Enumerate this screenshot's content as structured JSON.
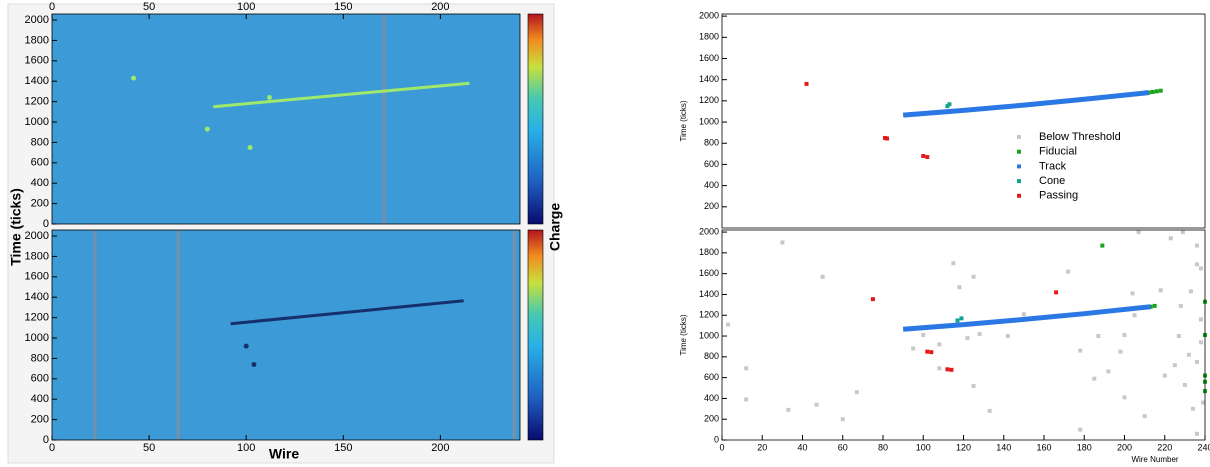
{
  "chart_data": [
    {
      "type": "heatmap",
      "ylabel": "Time (ticks)",
      "colorbar_label": "Charge",
      "xlim": [
        0,
        241
      ],
      "ylim": [
        0,
        2059
      ],
      "xticks": [
        0,
        50,
        100,
        150,
        200
      ],
      "yticks": [
        0,
        200,
        400,
        600,
        800,
        1000,
        1200,
        1400,
        1600,
        1800,
        2000
      ],
      "background": "#3c9bd6",
      "dead_wires": [
        171
      ],
      "dead_color": "#6a92b4",
      "track_color": "#9ee86a",
      "tracks": [
        {
          "x": [
            83,
            215
          ],
          "values": [
            1150,
            1380
          ]
        }
      ],
      "spots": {
        "x": [
          42,
          80,
          102,
          112
        ],
        "values": [
          1430,
          930,
          750,
          1240
        ]
      }
    },
    {
      "type": "heatmap",
      "xlabel": "Wire",
      "xlim": [
        0,
        241
      ],
      "ylim": [
        0,
        2059
      ],
      "xticks": [
        0,
        50,
        100,
        150,
        200
      ],
      "yticks": [
        0,
        200,
        400,
        600,
        800,
        1000,
        1200,
        1400,
        1600,
        1800,
        2000
      ],
      "background": "#3c9bd6",
      "dead_wires": [
        22,
        65,
        238
      ],
      "dead_color": "#6a92b4",
      "track_color": "#16306e",
      "tracks": [
        {
          "x": [
            92,
            212
          ],
          "values": [
            1140,
            1365
          ]
        }
      ],
      "spots": {
        "x": [
          100,
          104
        ],
        "values": [
          920,
          740
        ]
      }
    },
    {
      "type": "scatter",
      "ylabel": "Time (ticks)",
      "legend": "right",
      "xlim": [
        0,
        240
      ],
      "ylim": [
        0,
        2020
      ],
      "yticks": [
        200,
        400,
        600,
        800,
        1000,
        1200,
        1400,
        1600,
        1800,
        2000
      ],
      "series": [
        {
          "name": "Below Threshold",
          "color": "#c8c8c8",
          "x": [],
          "values": []
        },
        {
          "name": "Fiducial",
          "color": "#1aa31a",
          "x": [
            212,
            214,
            216,
            218
          ],
          "values": [
            1278,
            1284,
            1290,
            1296
          ]
        },
        {
          "name": "Track",
          "color": "#2b78e4",
          "connect": true,
          "x": [
            90,
            120,
            150,
            180,
            212
          ],
          "values": [
            1065,
            1110,
            1160,
            1215,
            1278
          ]
        },
        {
          "name": "Cone",
          "color": "#13a38f",
          "x": [
            112,
            113
          ],
          "values": [
            1150,
            1168
          ]
        },
        {
          "name": "Passing",
          "color": "#e41a1a",
          "x": [
            42,
            81,
            82,
            100,
            102
          ],
          "values": [
            1360,
            850,
            845,
            680,
            670
          ]
        }
      ]
    },
    {
      "type": "scatter",
      "ylabel": "Time (ticks)",
      "xlabel": "Wire Number",
      "xlim": [
        0,
        240
      ],
      "ylim": [
        0,
        2020
      ],
      "xticks": [
        0,
        20,
        40,
        60,
        80,
        100,
        120,
        140,
        160,
        180,
        200,
        220,
        240
      ],
      "yticks": [
        0,
        200,
        400,
        600,
        800,
        1000,
        1200,
        1400,
        1600,
        1800,
        2000
      ],
      "series": [
        {
          "color": "#c8c8c8",
          "x": [
            3,
            12,
            12,
            30,
            33,
            47,
            50,
            60,
            67,
            95,
            100,
            108,
            108,
            115,
            118,
            122,
            125,
            125,
            128,
            133,
            142,
            150,
            172,
            178,
            178,
            185,
            187,
            192,
            198,
            200,
            200,
            204,
            205,
            207,
            210,
            218,
            220,
            223,
            225,
            227,
            228,
            229,
            230,
            232,
            233,
            234,
            236,
            236,
            236,
            238,
            238,
            238,
            239,
            236
          ],
          "values": [
            1110,
            690,
            390,
            1900,
            290,
            340,
            1570,
            200,
            460,
            880,
            1010,
            690,
            920,
            1700,
            1470,
            980,
            1570,
            520,
            1020,
            280,
            1000,
            1210,
            1620,
            860,
            100,
            590,
            1000,
            660,
            850,
            410,
            1010,
            1410,
            1200,
            2000,
            230,
            1440,
            620,
            1940,
            720,
            1000,
            1290,
            2000,
            530,
            820,
            1430,
            300,
            1690,
            1870,
            750,
            940,
            1650,
            1160,
            360,
            60
          ]
        },
        {
          "color": "#1aa31a",
          "x": [
            189,
            213,
            215,
            240,
            240,
            240,
            240,
            240
          ],
          "values": [
            1870,
            1282,
            1290,
            1330,
            1010,
            620,
            560,
            470
          ]
        },
        {
          "color": "#2b78e4",
          "connect": true,
          "x": [
            90,
            120,
            150,
            180,
            213
          ],
          "values": [
            1065,
            1110,
            1160,
            1215,
            1282
          ]
        },
        {
          "color": "#13a38f",
          "x": [
            117,
            119
          ],
          "values": [
            1150,
            1170
          ]
        },
        {
          "color": "#e41a1a",
          "x": [
            75,
            102,
            104,
            112,
            114,
            166
          ],
          "values": [
            1355,
            850,
            845,
            680,
            675,
            1420
          ]
        }
      ]
    }
  ]
}
